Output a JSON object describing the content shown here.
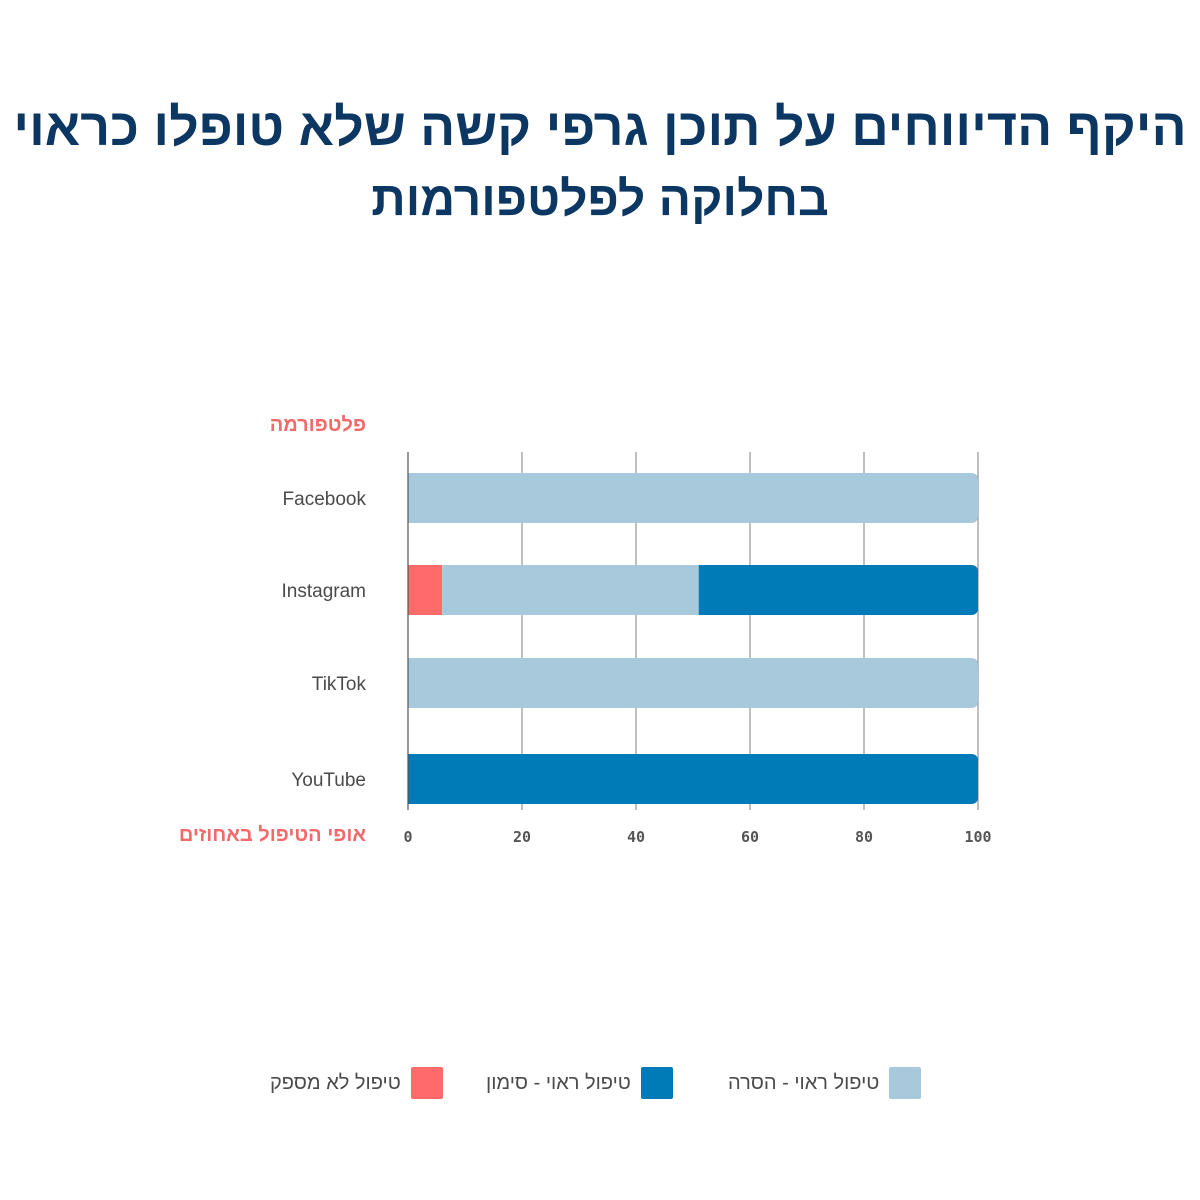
{
  "title": "היקף הדיווחים על תוכן גרפי קשה שלא טופלו כראוי",
  "subtitle": "בחלוקה לפלטפורמות",
  "colors": {
    "title": "#0d3763",
    "accent": "#f26a6a",
    "removal": "#a8c8dc",
    "marking": "#007bb8",
    "insufficient": "#ff6b6b",
    "grid": "#7f7f7f"
  },
  "chart_data": {
    "type": "bar",
    "orientation": "horizontal",
    "stacked": true,
    "ylabel": "פלטפורמה",
    "xlabel": "אופי הטיפול באחוזים",
    "categories": [
      "Facebook",
      "Instagram",
      "TikTok",
      "YouTube"
    ],
    "xlim": [
      0,
      100
    ],
    "xticks": [
      0,
      20,
      40,
      60,
      80,
      100
    ],
    "grid": true,
    "legend_position": "bottom",
    "series": [
      {
        "name": "טיפול לא מספק",
        "color": "#ff6b6b",
        "values": [
          0,
          6,
          0,
          0
        ]
      },
      {
        "name": "טיפול ראוי - הסרה",
        "color": "#a8c8dc",
        "values": [
          100,
          45,
          100,
          0
        ]
      },
      {
        "name": "טיפול ראוי - סימון",
        "color": "#007bb8",
        "values": [
          0,
          49,
          0,
          100
        ]
      }
    ]
  },
  "legend": [
    {
      "label": "טיפול ראוי - הסרה",
      "color": "#a8c8dc"
    },
    {
      "label": "טיפול ראוי - סימון",
      "color": "#007bb8"
    },
    {
      "label": "טיפול לא מספק",
      "color": "#ff6b6b"
    }
  ]
}
